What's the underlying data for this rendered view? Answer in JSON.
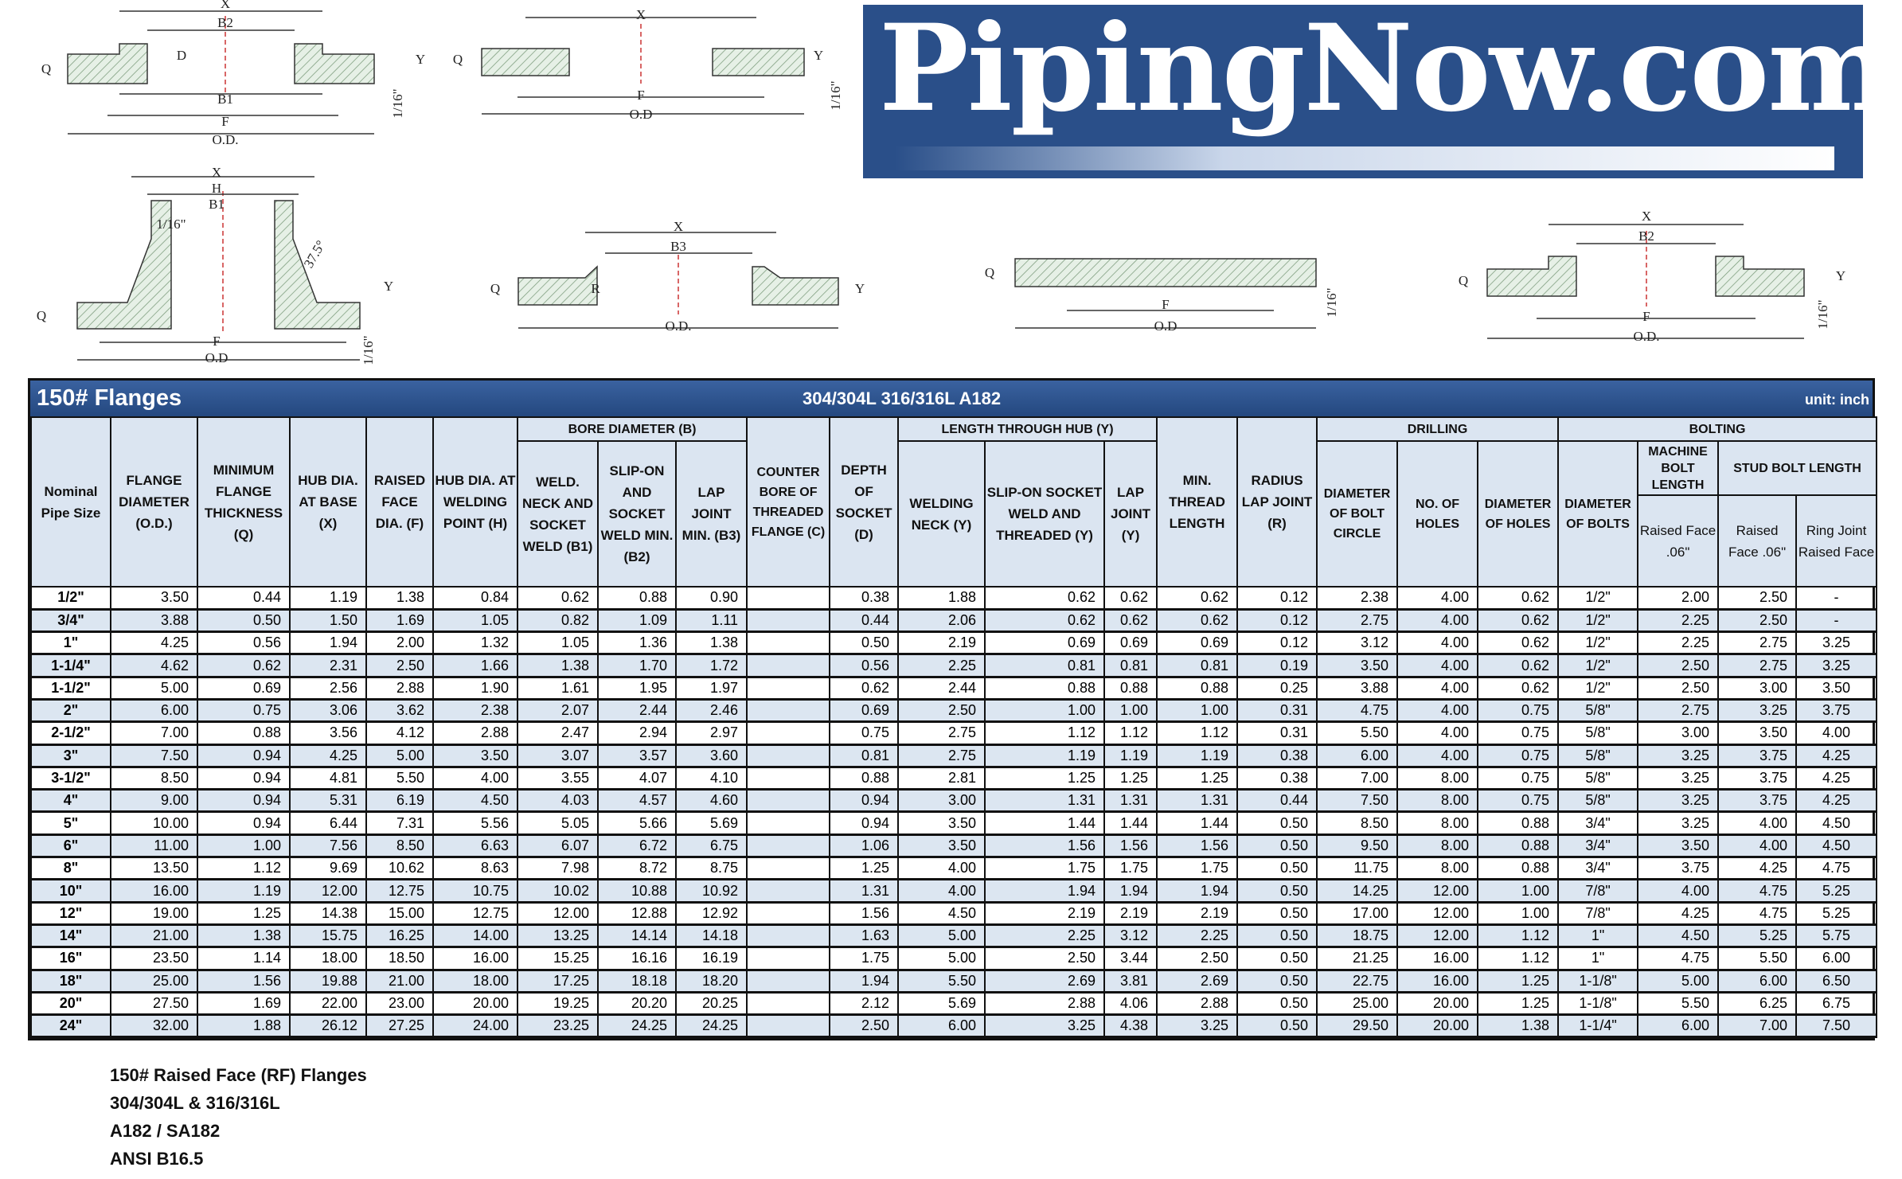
{
  "logo": {
    "text": "PipingNow.com",
    "bg_color": "#2a4f89"
  },
  "drawings": [
    {
      "name": "slip-on-flange",
      "labels": [
        "X",
        "B2",
        "D",
        "Q",
        "Y",
        "B1",
        "F",
        "O.D.",
        "1/16\""
      ]
    },
    {
      "name": "threaded-flange",
      "labels": [
        "X",
        "Q",
        "Y",
        "F",
        "O.D",
        "1/16\""
      ]
    },
    {
      "name": "welding-neck-flange",
      "labels": [
        "X",
        "H",
        "B1",
        "1/16\"",
        "37.5°",
        "Y",
        "Q",
        "F",
        "O.D",
        "1/16\""
      ]
    },
    {
      "name": "lap-joint-flange",
      "labels": [
        "X",
        "B3",
        "Q",
        "R",
        "Y",
        "O.D."
      ]
    },
    {
      "name": "blind-flange",
      "labels": [
        "Q",
        "F",
        "O.D",
        "1/16\""
      ]
    },
    {
      "name": "socket-weld-flange",
      "labels": [
        "X",
        "B2",
        "Q",
        "Y",
        "F",
        "O.D.",
        "1/16\""
      ]
    }
  ],
  "table": {
    "title": "150# Flanges",
    "material": "304/304L  316/316L  A182",
    "unit": "unit: inch",
    "colors": {
      "title_bar": "#2c5288",
      "header_bg": "#dbe5f1",
      "alt_row": "#dce6f1"
    },
    "groups": {
      "bore": "BORE DIAMETER (B)",
      "length": "LENGTH THROUGH HUB (Y)",
      "drilling": "DRILLING",
      "bolting": "BOLTING",
      "stud": "STUD BOLT LENGTH"
    },
    "headers": {
      "nps": "Nominal Pipe Size",
      "od": "FLANGE DIAMETER (O.D.)",
      "q": "MINIMUM FLANGE THICKNESS (Q)",
      "x": "HUB DIA. AT BASE (X)",
      "f": "RAISED FACE DIA. (F)",
      "h": "HUB DIA. AT WELDING POINT (H)",
      "b1": "WELD. NECK AND SOCKET WELD (B1)",
      "b2": "SLIP-ON AND SOCKET WELD MIN. (B2)",
      "b3": "LAP JOINT MIN. (B3)",
      "c": "COUNTER BORE OF THREADED FLANGE (C)",
      "d": "DEPTH OF SOCKET (D)",
      "yw": "WELDING NECK (Y)",
      "ys": "SLIP-ON SOCKET WELD AND THREADED (Y)",
      "yl": "LAP JOINT (Y)",
      "thread": "MIN. THREAD LENGTH",
      "r": "RADIUS LAP JOINT (R)",
      "bc": "DIAMETER OF BOLT CIRCLE",
      "holes": "NO. OF HOLES",
      "dh": "DIAMETER OF HOLES",
      "db": "DIAMETER OF BOLTS",
      "machine": "MACHINE BOLT LENGTH",
      "mrf": "Raised Face .06\"",
      "srf": "Raised Face .06\"",
      "srj": "Ring Joint Raised Face"
    },
    "rows": [
      [
        "1/2\"",
        "3.50",
        "0.44",
        "1.19",
        "1.38",
        "0.84",
        "0.62",
        "0.88",
        "0.90",
        "",
        "0.38",
        "1.88",
        "0.62",
        "0.62",
        "0.62",
        "0.12",
        "2.38",
        "4.00",
        "0.62",
        "1/2\"",
        "2.00",
        "2.50",
        "-"
      ],
      [
        "3/4\"",
        "3.88",
        "0.50",
        "1.50",
        "1.69",
        "1.05",
        "0.82",
        "1.09",
        "1.11",
        "",
        "0.44",
        "2.06",
        "0.62",
        "0.62",
        "0.62",
        "0.12",
        "2.75",
        "4.00",
        "0.62",
        "1/2\"",
        "2.25",
        "2.50",
        "-"
      ],
      [
        "1\"",
        "4.25",
        "0.56",
        "1.94",
        "2.00",
        "1.32",
        "1.05",
        "1.36",
        "1.38",
        "",
        "0.50",
        "2.19",
        "0.69",
        "0.69",
        "0.69",
        "0.12",
        "3.12",
        "4.00",
        "0.62",
        "1/2\"",
        "2.25",
        "2.75",
        "3.25"
      ],
      [
        "1-1/4\"",
        "4.62",
        "0.62",
        "2.31",
        "2.50",
        "1.66",
        "1.38",
        "1.70",
        "1.72",
        "",
        "0.56",
        "2.25",
        "0.81",
        "0.81",
        "0.81",
        "0.19",
        "3.50",
        "4.00",
        "0.62",
        "1/2\"",
        "2.50",
        "2.75",
        "3.25"
      ],
      [
        "1-1/2\"",
        "5.00",
        "0.69",
        "2.56",
        "2.88",
        "1.90",
        "1.61",
        "1.95",
        "1.97",
        "",
        "0.62",
        "2.44",
        "0.88",
        "0.88",
        "0.88",
        "0.25",
        "3.88",
        "4.00",
        "0.62",
        "1/2\"",
        "2.50",
        "3.00",
        "3.50"
      ],
      [
        "2\"",
        "6.00",
        "0.75",
        "3.06",
        "3.62",
        "2.38",
        "2.07",
        "2.44",
        "2.46",
        "",
        "0.69",
        "2.50",
        "1.00",
        "1.00",
        "1.00",
        "0.31",
        "4.75",
        "4.00",
        "0.75",
        "5/8\"",
        "2.75",
        "3.25",
        "3.75"
      ],
      [
        "2-1/2\"",
        "7.00",
        "0.88",
        "3.56",
        "4.12",
        "2.88",
        "2.47",
        "2.94",
        "2.97",
        "",
        "0.75",
        "2.75",
        "1.12",
        "1.12",
        "1.12",
        "0.31",
        "5.50",
        "4.00",
        "0.75",
        "5/8\"",
        "3.00",
        "3.50",
        "4.00"
      ],
      [
        "3\"",
        "7.50",
        "0.94",
        "4.25",
        "5.00",
        "3.50",
        "3.07",
        "3.57",
        "3.60",
        "",
        "0.81",
        "2.75",
        "1.19",
        "1.19",
        "1.19",
        "0.38",
        "6.00",
        "4.00",
        "0.75",
        "5/8\"",
        "3.25",
        "3.75",
        "4.25"
      ],
      [
        "3-1/2\"",
        "8.50",
        "0.94",
        "4.81",
        "5.50",
        "4.00",
        "3.55",
        "4.07",
        "4.10",
        "",
        "0.88",
        "2.81",
        "1.25",
        "1.25",
        "1.25",
        "0.38",
        "7.00",
        "8.00",
        "0.75",
        "5/8\"",
        "3.25",
        "3.75",
        "4.25"
      ],
      [
        "4\"",
        "9.00",
        "0.94",
        "5.31",
        "6.19",
        "4.50",
        "4.03",
        "4.57",
        "4.60",
        "",
        "0.94",
        "3.00",
        "1.31",
        "1.31",
        "1.31",
        "0.44",
        "7.50",
        "8.00",
        "0.75",
        "5/8\"",
        "3.25",
        "3.75",
        "4.25"
      ],
      [
        "5\"",
        "10.00",
        "0.94",
        "6.44",
        "7.31",
        "5.56",
        "5.05",
        "5.66",
        "5.69",
        "",
        "0.94",
        "3.50",
        "1.44",
        "1.44",
        "1.44",
        "0.50",
        "8.50",
        "8.00",
        "0.88",
        "3/4\"",
        "3.25",
        "4.00",
        "4.50"
      ],
      [
        "6\"",
        "11.00",
        "1.00",
        "7.56",
        "8.50",
        "6.63",
        "6.07",
        "6.72",
        "6.75",
        "",
        "1.06",
        "3.50",
        "1.56",
        "1.56",
        "1.56",
        "0.50",
        "9.50",
        "8.00",
        "0.88",
        "3/4\"",
        "3.50",
        "4.00",
        "4.50"
      ],
      [
        "8\"",
        "13.50",
        "1.12",
        "9.69",
        "10.62",
        "8.63",
        "7.98",
        "8.72",
        "8.75",
        "",
        "1.25",
        "4.00",
        "1.75",
        "1.75",
        "1.75",
        "0.50",
        "11.75",
        "8.00",
        "0.88",
        "3/4\"",
        "3.75",
        "4.25",
        "4.75"
      ],
      [
        "10\"",
        "16.00",
        "1.19",
        "12.00",
        "12.75",
        "10.75",
        "10.02",
        "10.88",
        "10.92",
        "",
        "1.31",
        "4.00",
        "1.94",
        "1.94",
        "1.94",
        "0.50",
        "14.25",
        "12.00",
        "1.00",
        "7/8\"",
        "4.00",
        "4.75",
        "5.25"
      ],
      [
        "12\"",
        "19.00",
        "1.25",
        "14.38",
        "15.00",
        "12.75",
        "12.00",
        "12.88",
        "12.92",
        "",
        "1.56",
        "4.50",
        "2.19",
        "2.19",
        "2.19",
        "0.50",
        "17.00",
        "12.00",
        "1.00",
        "7/8\"",
        "4.25",
        "4.75",
        "5.25"
      ],
      [
        "14\"",
        "21.00",
        "1.38",
        "15.75",
        "16.25",
        "14.00",
        "13.25",
        "14.14",
        "14.18",
        "",
        "1.63",
        "5.00",
        "2.25",
        "3.12",
        "2.25",
        "0.50",
        "18.75",
        "12.00",
        "1.12",
        "1\"",
        "4.50",
        "5.25",
        "5.75"
      ],
      [
        "16\"",
        "23.50",
        "1.14",
        "18.00",
        "18.50",
        "16.00",
        "15.25",
        "16.16",
        "16.19",
        "",
        "1.75",
        "5.00",
        "2.50",
        "3.44",
        "2.50",
        "0.50",
        "21.25",
        "16.00",
        "1.12",
        "1\"",
        "4.75",
        "5.50",
        "6.00"
      ],
      [
        "18\"",
        "25.00",
        "1.56",
        "19.88",
        "21.00",
        "18.00",
        "17.25",
        "18.18",
        "18.20",
        "",
        "1.94",
        "5.50",
        "2.69",
        "3.81",
        "2.69",
        "0.50",
        "22.75",
        "16.00",
        "1.25",
        "1-1/8\"",
        "5.00",
        "6.00",
        "6.50"
      ],
      [
        "20\"",
        "27.50",
        "1.69",
        "22.00",
        "23.00",
        "20.00",
        "19.25",
        "20.20",
        "20.25",
        "",
        "2.12",
        "5.69",
        "2.88",
        "4.06",
        "2.88",
        "0.50",
        "25.00",
        "20.00",
        "1.25",
        "1-1/8\"",
        "5.50",
        "6.25",
        "6.75"
      ],
      [
        "24\"",
        "32.00",
        "1.88",
        "26.12",
        "27.25",
        "24.00",
        "23.25",
        "24.25",
        "24.25",
        "",
        "2.50",
        "6.00",
        "3.25",
        "4.38",
        "3.25",
        "0.50",
        "29.50",
        "20.00",
        "1.38",
        "1-1/4\"",
        "6.00",
        "7.00",
        "7.50"
      ]
    ]
  },
  "notes": [
    "150# Raised Face (RF) Flanges",
    "304/304L & 316/316L",
    "A182 / SA182",
    "ANSI B16.5"
  ]
}
